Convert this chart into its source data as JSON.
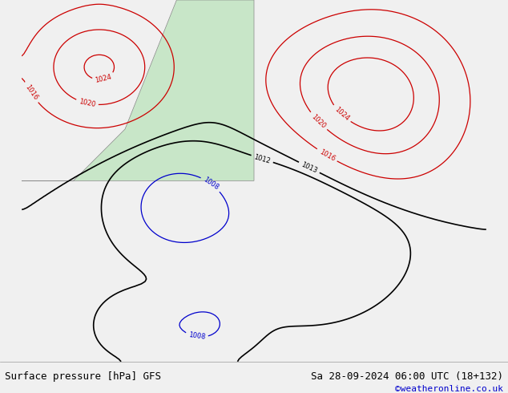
{
  "title_left": "Surface pressure [hPa] GFS",
  "title_right": "Sa 28-09-2024 06:00 UTC (18+132)",
  "credit": "©weatheronline.co.uk",
  "bg_color": "#e8f4f8",
  "land_color": "#c8e6c8",
  "border_color": "#aaaaaa",
  "fig_width": 6.34,
  "fig_height": 4.9,
  "dpi": 100
}
